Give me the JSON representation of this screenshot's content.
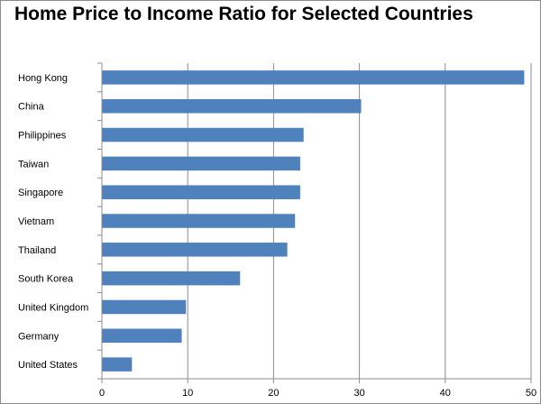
{
  "chart_data": {
    "type": "bar",
    "orientation": "horizontal",
    "title": "Home Price to Income Ratio for Selected Countries",
    "categories": [
      "Hong Kong",
      "China",
      "Philippines",
      "Taiwan",
      "Singapore",
      "Vietnam",
      "Thailand",
      "South Korea",
      "United Kingdom",
      "Germany",
      "United States"
    ],
    "values": [
      49.2,
      30.2,
      23.5,
      23.1,
      23.1,
      22.5,
      21.6,
      16.1,
      9.8,
      9.3,
      3.5
    ],
    "xlim": [
      0,
      50
    ],
    "xticks": [
      "0",
      "10",
      "20",
      "30",
      "40",
      "50"
    ],
    "xtick_values": [
      0,
      10,
      20,
      30,
      40,
      50
    ],
    "grid": true,
    "legend": "none",
    "bar_color": "#4f81bd",
    "grid_color": "#8c8c8c"
  }
}
